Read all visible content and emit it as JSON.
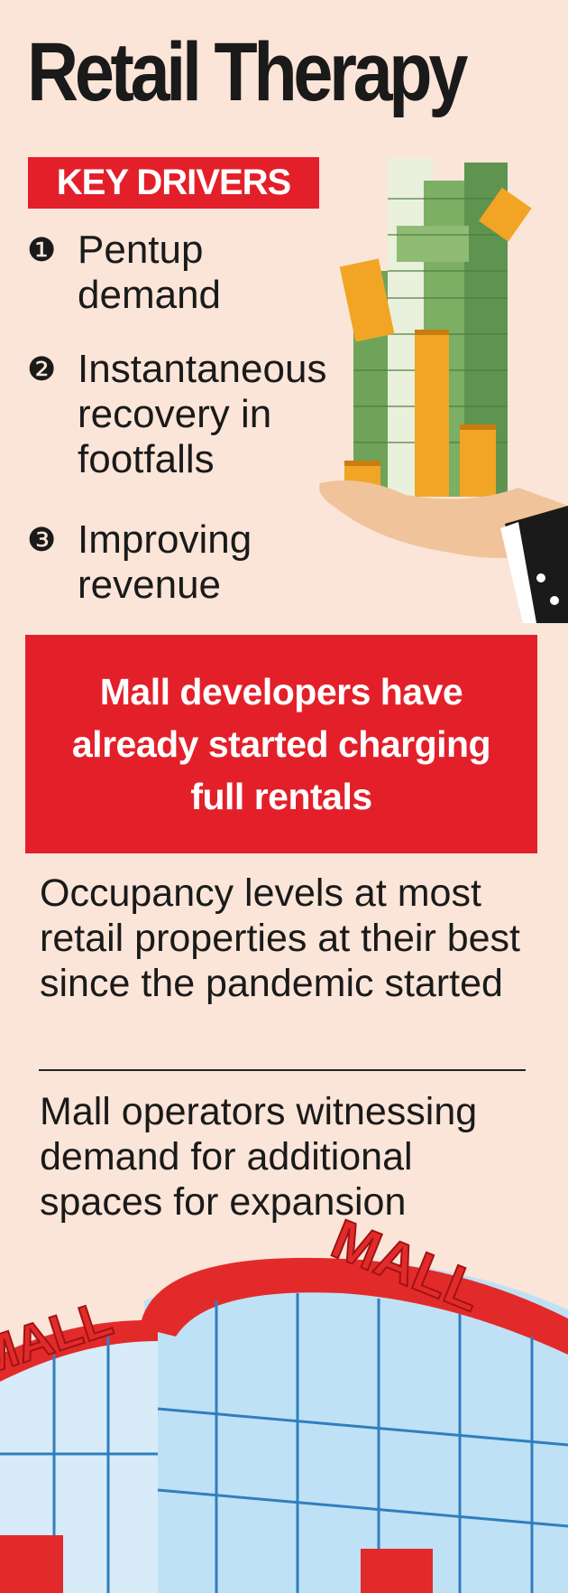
{
  "title": "Retail Therapy",
  "key_drivers": {
    "heading": "KEY DRIVERS",
    "items": [
      {
        "marker": "❶",
        "text": "Pentup demand"
      },
      {
        "marker": "❷",
        "text": "Instantaneous recovery in footfalls"
      },
      {
        "marker": "❸",
        "text": "Improving revenue"
      }
    ]
  },
  "callout": "Mall developers have already started charging full rentals",
  "points": [
    "Occupancy levels at most retail properties at their best since the pandemic started",
    "Mall operators witnessing demand for additional spaces for expansion"
  ],
  "mall_signs": [
    "MALL",
    "MALL"
  ]
}
